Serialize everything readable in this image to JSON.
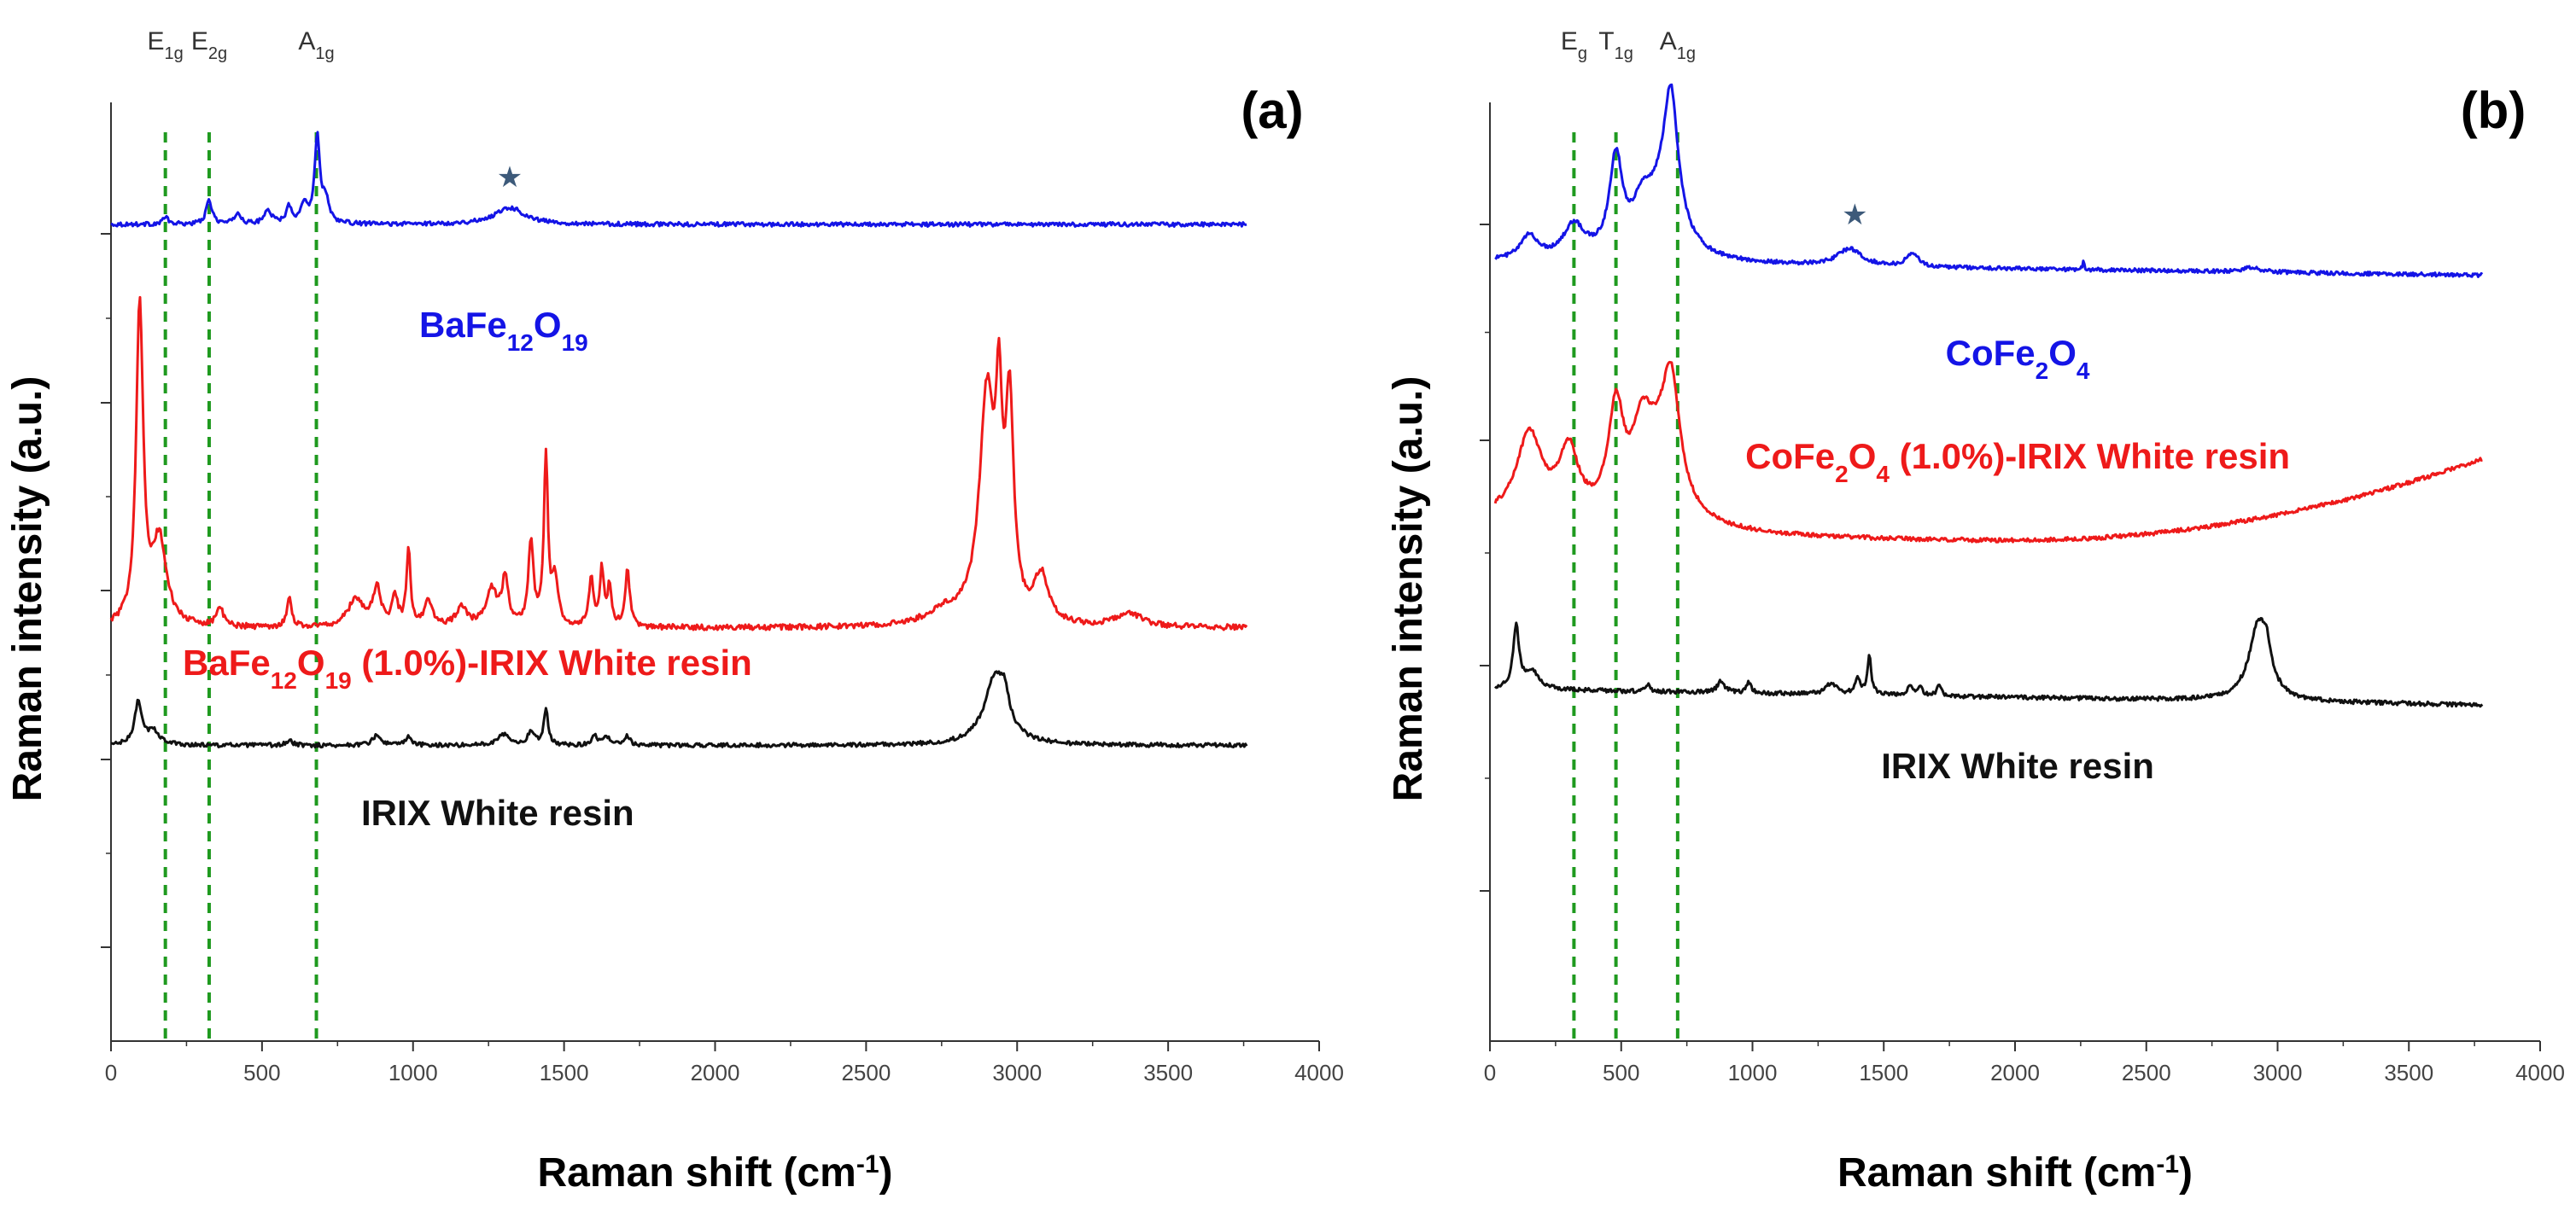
{
  "chart_data": [
    {
      "type": "line",
      "panel": "(a)",
      "xlabel": "Raman shift (cm",
      "xlabel_sup": "-1",
      "xlabel_tail": ")",
      "ylabel": "Raman intensity (a.u.)",
      "xlim": [
        0,
        4000
      ],
      "xticks": [
        0,
        500,
        1000,
        1500,
        2000,
        2500,
        3000,
        3500,
        4000
      ],
      "ylim": [
        0,
        100
      ],
      "yticks_major": [
        10,
        30,
        48,
        68,
        86
      ],
      "modes": [
        {
          "name": "E",
          "sub": "1g",
          "x": 180
        },
        {
          "name": "E",
          "sub": "2g",
          "x": 325
        },
        {
          "name": "A",
          "sub": "1g",
          "x": 680
        }
      ],
      "star": {
        "symbol": "★",
        "x": 1320,
        "y": 91
      },
      "series": [
        {
          "name": "BaFe12O19",
          "label_parts": [
            [
              "BaFe",
              ""
            ],
            [
              "12",
              "sub"
            ],
            [
              "O",
              ""
            ],
            [
              "19",
              "sub"
            ]
          ],
          "label_pos": {
            "x": 1300,
            "y": 75
          },
          "color": "#1414e6",
          "baseline": 87,
          "noise": 0.22,
          "tilt": 0,
          "x_start": 0,
          "x_end": 3760,
          "peaks": [
            [
              180,
              0.8,
              10
            ],
            [
              325,
              2.5,
              12
            ],
            [
              420,
              1.2,
              12
            ],
            [
              520,
              1.5,
              14
            ],
            [
              590,
              1.8,
              12
            ],
            [
              640,
              2.2,
              12
            ],
            [
              683,
              9.2,
              10
            ],
            [
              710,
              2.5,
              14
            ],
            [
              1320,
              1.8,
              60
            ]
          ]
        },
        {
          "name": "BaFe12O19 (1.0%)-IRIX White resin",
          "label_parts": [
            [
              "BaFe",
              ""
            ],
            [
              "12",
              "sub"
            ],
            [
              "O",
              ""
            ],
            [
              "19",
              "sub"
            ],
            [
              " (1.0%)-IRIX White resin",
              ""
            ]
          ],
          "label_pos": {
            "x": 1180,
            "y": 39
          },
          "color": "#ee1a1a",
          "baseline": 44,
          "noise": 0.3,
          "tilt": 0,
          "x_start": 0,
          "x_end": 3760,
          "peaks": [
            [
              95,
              34,
              14
            ],
            [
              160,
              9,
              28
            ],
            [
              360,
              2,
              14
            ],
            [
              590,
              3,
              10
            ],
            [
              810,
              3,
              30
            ],
            [
              880,
              4,
              16
            ],
            [
              940,
              3,
              12
            ],
            [
              985,
              8,
              8
            ],
            [
              1050,
              3,
              14
            ],
            [
              1160,
              2,
              22
            ],
            [
              1260,
              4,
              22
            ],
            [
              1305,
              5,
              12
            ],
            [
              1390,
              9,
              10
            ],
            [
              1440,
              18,
              8
            ],
            [
              1470,
              5,
              12
            ],
            [
              1590,
              5,
              9
            ],
            [
              1625,
              6,
              8
            ],
            [
              1650,
              4,
              8
            ],
            [
              1710,
              6,
              9
            ],
            [
              2760,
              1.5,
              70
            ],
            [
              2900,
              24,
              30
            ],
            [
              2940,
              18,
              12
            ],
            [
              2975,
              22,
              16
            ],
            [
              3080,
              5,
              28
            ],
            [
              3370,
              1.5,
              50
            ]
          ]
        },
        {
          "name": "IRIX White resin",
          "label_parts": [
            [
              "IRIX White resin",
              ""
            ]
          ],
          "label_pos": {
            "x": 1280,
            "y": 23
          },
          "color": "#111111",
          "baseline": 31.5,
          "noise": 0.22,
          "tilt": 0,
          "x_start": 0,
          "x_end": 3760,
          "peaks": [
            [
              90,
              4.5,
              14
            ],
            [
              140,
              1.5,
              25
            ],
            [
              590,
              0.5,
              12
            ],
            [
              880,
              1,
              18
            ],
            [
              985,
              1,
              10
            ],
            [
              1300,
              1.2,
              24
            ],
            [
              1390,
              1.5,
              12
            ],
            [
              1440,
              3.8,
              9
            ],
            [
              1600,
              1,
              12
            ],
            [
              1640,
              1,
              10
            ],
            [
              1710,
              1,
              10
            ],
            [
              2930,
              7.5,
              45
            ],
            [
              2960,
              2,
              14
            ]
          ]
        }
      ]
    },
    {
      "type": "line",
      "panel": "(b)",
      "xlabel": "Raman shift (cm",
      "xlabel_sup": "-1",
      "xlabel_tail": ")",
      "ylabel": "Raman intensity (a.u.)",
      "xlim": [
        0,
        4000
      ],
      "xticks": [
        0,
        500,
        1000,
        1500,
        2000,
        2500,
        3000,
        3500,
        4000
      ],
      "ylim": [
        0,
        100
      ],
      "yticks_major": [
        16,
        40,
        64,
        87
      ],
      "modes": [
        {
          "name": "E",
          "sub": "g",
          "x": 320
        },
        {
          "name": "T",
          "sub": "1g",
          "x": 480
        },
        {
          "name": "A",
          "sub": "1g",
          "x": 715
        }
      ],
      "star": {
        "symbol": "★",
        "x": 1390,
        "y": 87
      },
      "series": [
        {
          "name": "CoFe2O4",
          "label_parts": [
            [
              "CoFe",
              ""
            ],
            [
              "2",
              "sub"
            ],
            [
              "O",
              ""
            ],
            [
              "4",
              "sub"
            ]
          ],
          "label_pos": {
            "x": 2010,
            "y": 72
          },
          "color": "#1414e6",
          "baseline": 83,
          "noise": 0.2,
          "tilt": -1.5,
          "x_start": 20,
          "x_end": 3780,
          "peaks": [
            [
              150,
              2.5,
              40
            ],
            [
              320,
              3.5,
              50
            ],
            [
              480,
              10,
              30
            ],
            [
              580,
              4,
              45
            ],
            [
              690,
              13,
              32
            ],
            [
              660,
              6,
              80
            ],
            [
              1370,
              1.8,
              55
            ],
            [
              1610,
              1.5,
              25
            ],
            [
              2260,
              0.8,
              4
            ],
            [
              2900,
              0.5,
              40
            ]
          ]
        },
        {
          "name": "CoFe2O4 (1.0%)-IRIX White resin",
          "label_parts": [
            [
              "CoFe",
              ""
            ],
            [
              "2",
              "sub"
            ],
            [
              "O",
              ""
            ],
            [
              "4",
              "sub"
            ],
            [
              " (1.0%)-IRIX White resin",
              ""
            ]
          ],
          "label_pos": {
            "x": 2010,
            "y": 61
          },
          "color": "#ee1a1a",
          "baseline": 55.5,
          "noise": 0.22,
          "tilt": 0,
          "x_start": 20,
          "x_end": 3780,
          "bowl": {
            "center": 2000,
            "depth": 2.2,
            "right_rise": 7
          },
          "peaks": [
            [
              150,
              9,
              60
            ],
            [
              300,
              7,
              45
            ],
            [
              480,
              11,
              35
            ],
            [
              580,
              7,
              45
            ],
            [
              690,
              12,
              40
            ],
            [
              640,
              6,
              90
            ]
          ]
        },
        {
          "name": "IRIX White resin",
          "label_parts": [
            [
              "IRIX White resin",
              ""
            ]
          ],
          "label_pos": {
            "x": 2010,
            "y": 28
          },
          "color": "#111111",
          "baseline": 37.5,
          "noise": 0.22,
          "tilt": -1.8,
          "x_start": 20,
          "x_end": 3780,
          "peaks": [
            [
              100,
              6.5,
              14
            ],
            [
              160,
              2,
              30
            ],
            [
              600,
              0.7,
              12
            ],
            [
              880,
              1.2,
              18
            ],
            [
              985,
              1.2,
              10
            ],
            [
              1300,
              1.2,
              24
            ],
            [
              1400,
              1.8,
              12
            ],
            [
              1445,
              4,
              9
            ],
            [
              1600,
              1,
              12
            ],
            [
              1640,
              1,
              10
            ],
            [
              1710,
              1.2,
              10
            ],
            [
              2930,
              8.5,
              45
            ],
            [
              2960,
              2,
              14
            ]
          ]
        }
      ]
    }
  ]
}
